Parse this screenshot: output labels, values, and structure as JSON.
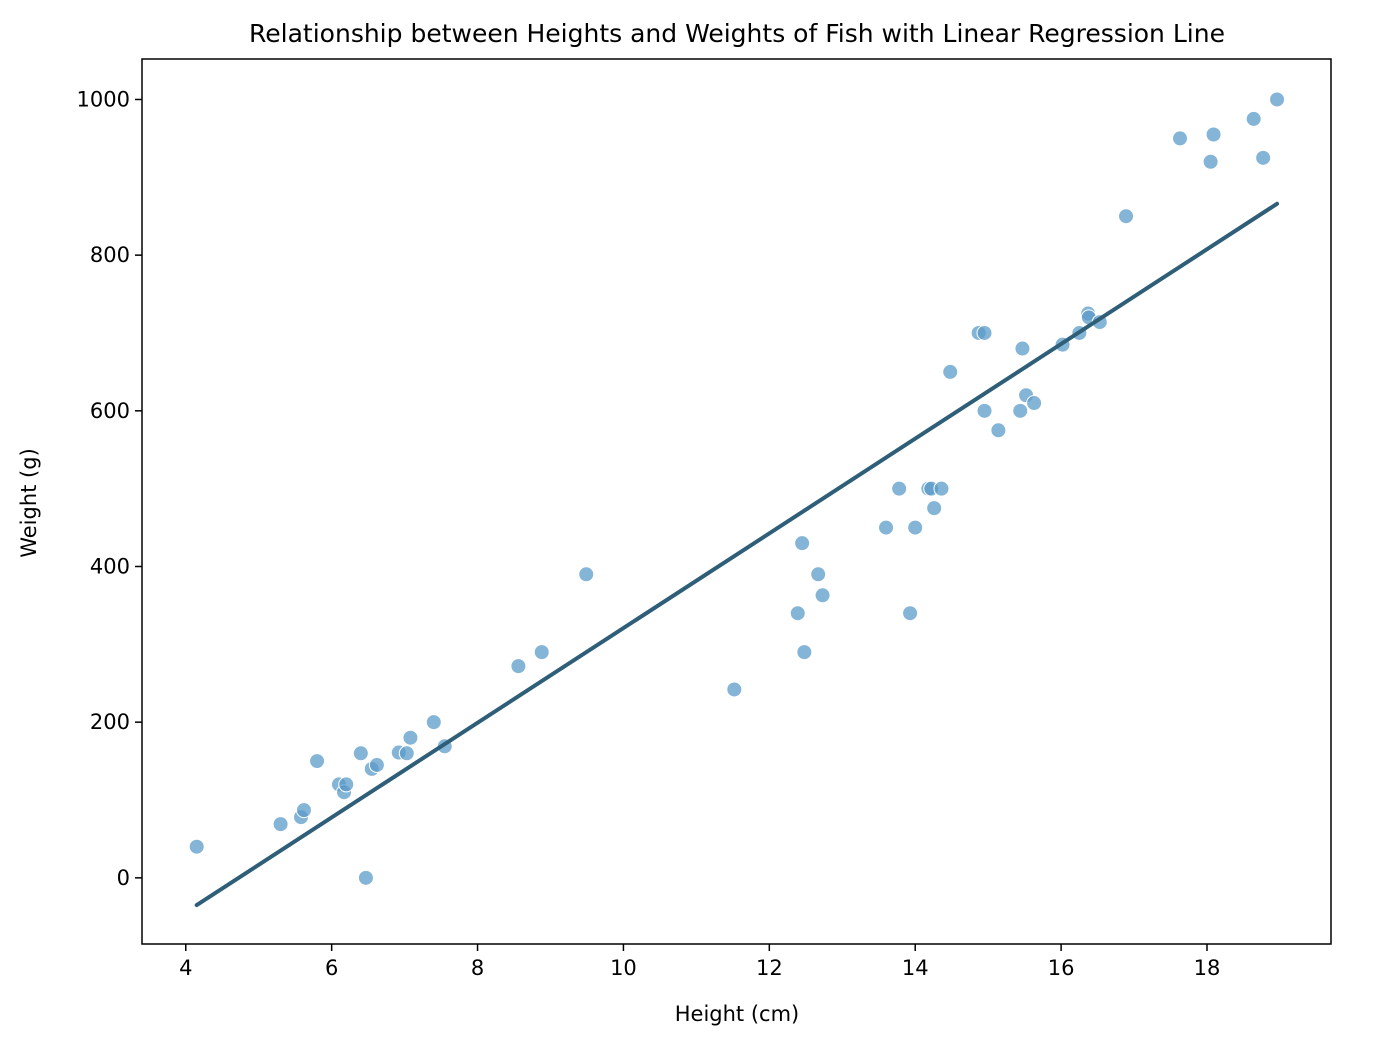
{
  "chart_data": {
    "type": "scatter",
    "title": "Relationship between Heights and Weights of Fish with Linear Regression Line",
    "xlabel": "Height (cm)",
    "ylabel": "Weight (g)",
    "xlim": [
      3.4,
      19.7
    ],
    "ylim": [
      -85,
      1052
    ],
    "xticks": [
      4,
      6,
      8,
      10,
      12,
      14,
      16,
      18
    ],
    "yticks": [
      0,
      200,
      400,
      600,
      800,
      1000
    ],
    "grid": false,
    "series": [
      {
        "kind": "scatter",
        "color": "#5b9bc8",
        "points": [
          [
            4.15,
            40
          ],
          [
            5.3,
            69
          ],
          [
            5.58,
            78
          ],
          [
            5.62,
            87
          ],
          [
            5.8,
            150
          ],
          [
            6.1,
            120
          ],
          [
            6.17,
            110
          ],
          [
            6.2,
            120
          ],
          [
            6.4,
            160
          ],
          [
            6.47,
            0
          ],
          [
            6.55,
            140
          ],
          [
            6.62,
            145
          ],
          [
            6.92,
            161
          ],
          [
            7.03,
            160
          ],
          [
            7.08,
            180
          ],
          [
            7.4,
            200
          ],
          [
            7.55,
            169
          ],
          [
            8.56,
            272
          ],
          [
            8.88,
            290
          ],
          [
            9.49,
            390
          ],
          [
            11.52,
            242
          ],
          [
            12.39,
            340
          ],
          [
            12.45,
            430
          ],
          [
            12.48,
            290
          ],
          [
            12.67,
            390
          ],
          [
            12.73,
            363
          ],
          [
            13.6,
            450
          ],
          [
            13.78,
            500
          ],
          [
            13.93,
            340
          ],
          [
            14.0,
            450
          ],
          [
            14.18,
            500
          ],
          [
            14.22,
            500
          ],
          [
            14.26,
            475
          ],
          [
            14.36,
            500
          ],
          [
            14.48,
            650
          ],
          [
            14.87,
            700
          ],
          [
            14.95,
            600
          ],
          [
            14.95,
            700
          ],
          [
            15.14,
            575
          ],
          [
            15.44,
            600
          ],
          [
            15.47,
            680
          ],
          [
            15.52,
            620
          ],
          [
            15.63,
            610
          ],
          [
            16.02,
            685
          ],
          [
            16.25,
            700
          ],
          [
            16.37,
            725
          ],
          [
            16.38,
            720
          ],
          [
            16.53,
            714
          ],
          [
            16.89,
            850
          ],
          [
            17.63,
            950
          ],
          [
            18.05,
            920
          ],
          [
            18.09,
            955
          ],
          [
            18.64,
            975
          ],
          [
            18.77,
            925
          ],
          [
            18.96,
            1000
          ]
        ]
      },
      {
        "kind": "line",
        "name": "",
        "color": "#2f5f78",
        "points": [
          [
            4.15,
            -35
          ],
          [
            18.96,
            866
          ]
        ]
      }
    ]
  }
}
